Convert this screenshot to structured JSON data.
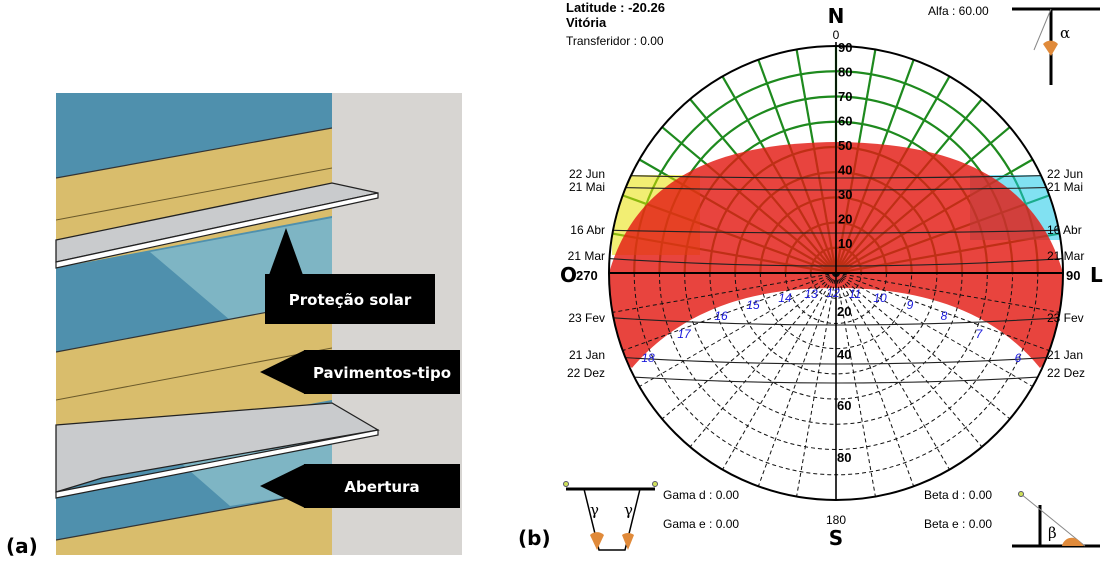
{
  "panel_a": {
    "letter": "(a)",
    "callouts": [
      {
        "text": "Proteção solar"
      },
      {
        "text": "Pavimentos-tipo"
      },
      {
        "text": "Abertura"
      }
    ]
  },
  "panel_b": {
    "letter": "(b)",
    "header": {
      "latitude": "Latitude :  -20.26",
      "city": "Vitória",
      "transferidor": "Transferidor : 0.00",
      "alfa": "Alfa : 60.00"
    },
    "cardinals": {
      "north": "N",
      "south": "S",
      "west": "O",
      "east": "L"
    },
    "azimuth_labels": {
      "north": "0",
      "west": "270",
      "east": "90",
      "south": "180"
    },
    "altitude_labels": [
      "90",
      "80",
      "70",
      "60",
      "50",
      "40",
      "30",
      "20",
      "10"
    ],
    "lower_altitude_labels": [
      "20",
      "40",
      "60",
      "80"
    ],
    "hour_labels": [
      "6",
      "7",
      "8",
      "9",
      "10",
      "11",
      "12",
      "13",
      "14",
      "15",
      "16",
      "17",
      "18"
    ],
    "left_dates": [
      "22 Jun",
      "21 Mai",
      "16 Abr",
      "21 Mar",
      "23 Fev",
      "21 Jan",
      "22 Dez"
    ],
    "right_dates": [
      "22 Jun",
      "21 Mai",
      "16 Abr",
      "21 Mar",
      "23 Fev",
      "21 Jan",
      "22 Dez"
    ],
    "gamma": {
      "d": "Gama d : 0.00",
      "e": "Gama e : 0.00",
      "symbol": "γ"
    },
    "beta": {
      "d": "Beta d : 0.00",
      "e": "Beta e : 0.00",
      "symbol": "β"
    },
    "alpha_symbol": "α",
    "colors": {
      "mask_red": "#e31b14",
      "grid_green": "#1e8a1e",
      "hours_blue": "#1a1adc"
    }
  }
}
